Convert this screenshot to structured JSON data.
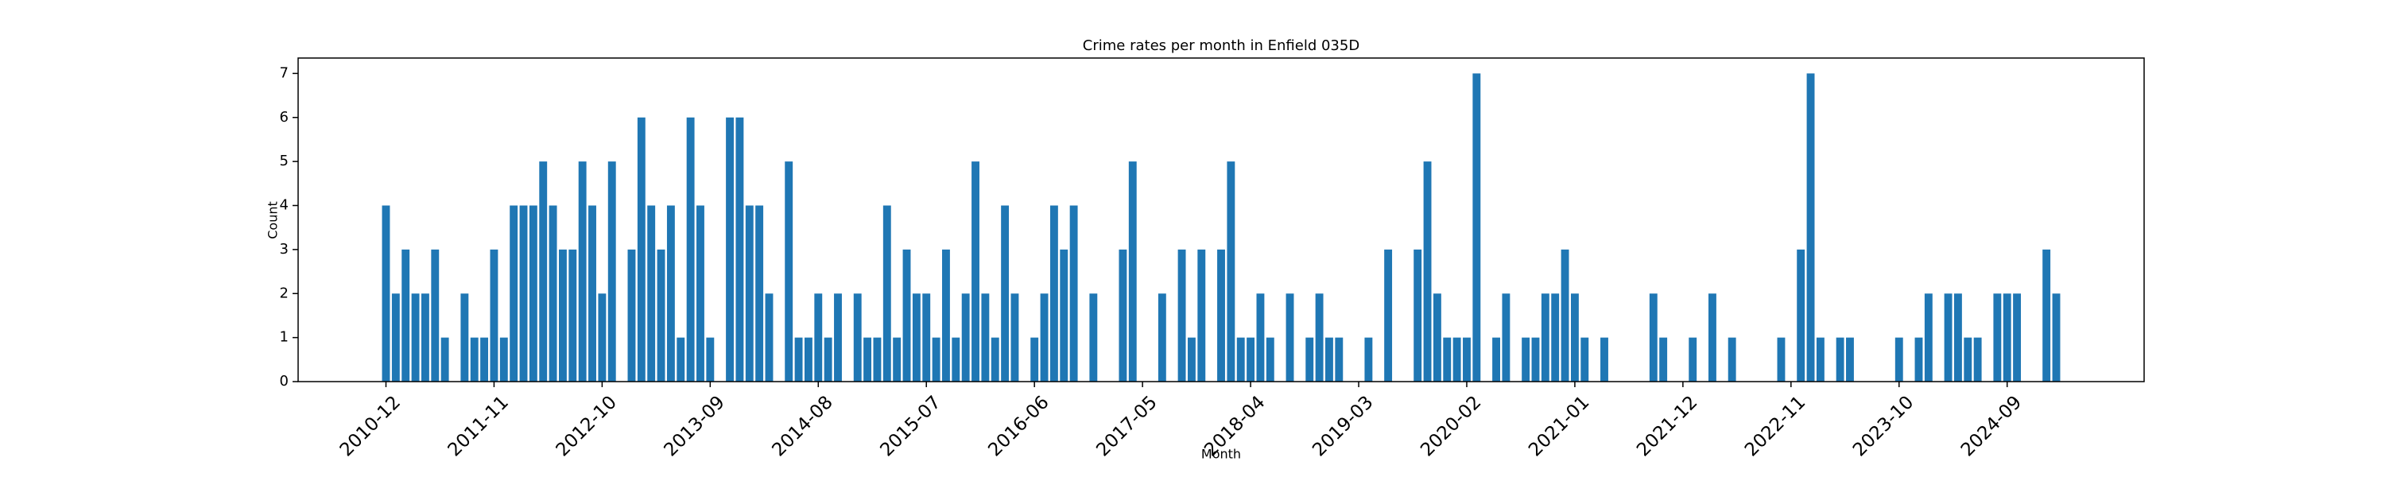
{
  "chart_data": {
    "type": "bar",
    "title": "Crime rates per month in Enfield 035D",
    "x_label": "Month",
    "y_label": "Count",
    "color": "#1f77b4",
    "categories": [
      "2010-12",
      null,
      null,
      null,
      null,
      null,
      null,
      null,
      null,
      null,
      null,
      "2011-11",
      null,
      null,
      null,
      null,
      null,
      null,
      null,
      null,
      null,
      null,
      "2012-10",
      null,
      null,
      null,
      null,
      null,
      null,
      null,
      null,
      null,
      null,
      "2013-09",
      null,
      null,
      null,
      null,
      null,
      null,
      null,
      null,
      null,
      null,
      "2014-08",
      null,
      null,
      null,
      null,
      null,
      null,
      null,
      null,
      null,
      null,
      "2015-07",
      null,
      null,
      null,
      null,
      null,
      null,
      null,
      null,
      null,
      null,
      "2016-06",
      null,
      null,
      null,
      null,
      null,
      null,
      null,
      null,
      null,
      null,
      "2017-05",
      null,
      null,
      null,
      null,
      null,
      null,
      null,
      null,
      null,
      null,
      "2018-04",
      null,
      null,
      null,
      null,
      null,
      null,
      null,
      null,
      null,
      null,
      "2019-03",
      null,
      null,
      null,
      null,
      null,
      null,
      null,
      null,
      null,
      null,
      "2020-02",
      null,
      null,
      null,
      null,
      null,
      null,
      null,
      null,
      null,
      null,
      "2021-01",
      null,
      null,
      null,
      null,
      null,
      null,
      null,
      null,
      null,
      null,
      "2021-12",
      null,
      null,
      null,
      null,
      null,
      null,
      null,
      null,
      null,
      null,
      "2022-11",
      null,
      null,
      null,
      null,
      null,
      null,
      null,
      null,
      null,
      null,
      "2023-10",
      null,
      null,
      null,
      null,
      null,
      null,
      null,
      null,
      null,
      null,
      "2024-09",
      null,
      null,
      null,
      null,
      null
    ],
    "values": [
      4,
      2,
      3,
      2,
      2,
      3,
      1,
      0,
      2,
      1,
      1,
      3,
      1,
      4,
      4,
      4,
      5,
      4,
      3,
      3,
      5,
      4,
      2,
      5,
      0,
      3,
      6,
      4,
      3,
      4,
      1,
      6,
      4,
      1,
      0,
      6,
      6,
      4,
      4,
      2,
      0,
      5,
      1,
      1,
      2,
      1,
      2,
      0,
      2,
      1,
      1,
      4,
      1,
      3,
      2,
      2,
      1,
      3,
      1,
      2,
      5,
      2,
      1,
      4,
      2,
      0,
      1,
      2,
      4,
      3,
      4,
      0,
      2,
      0,
      0,
      3,
      5,
      0,
      0,
      2,
      0,
      3,
      1,
      3,
      0,
      3,
      5,
      1,
      1,
      2,
      1,
      0,
      2,
      0,
      1,
      2,
      1,
      1,
      0,
      0,
      1,
      0,
      3,
      0,
      0,
      3,
      5,
      2,
      1,
      1,
      1,
      7,
      0,
      1,
      2,
      0,
      1,
      1,
      2,
      2,
      3,
      2,
      1,
      0,
      1,
      0,
      0,
      0,
      0,
      2,
      1,
      0,
      0,
      1,
      0,
      2,
      0,
      1,
      0,
      0,
      0,
      0,
      1,
      0,
      3,
      7,
      1,
      0,
      1,
      1,
      0,
      0,
      0,
      0,
      1,
      0,
      1,
      2,
      0,
      2,
      2,
      1,
      1,
      0,
      2,
      2,
      2,
      0,
      0,
      3,
      2
    ],
    "ylim": [
      0,
      7.35
    ],
    "yticks": [
      0,
      1,
      2,
      3,
      4,
      5,
      6,
      7
    ],
    "grid": false
  }
}
